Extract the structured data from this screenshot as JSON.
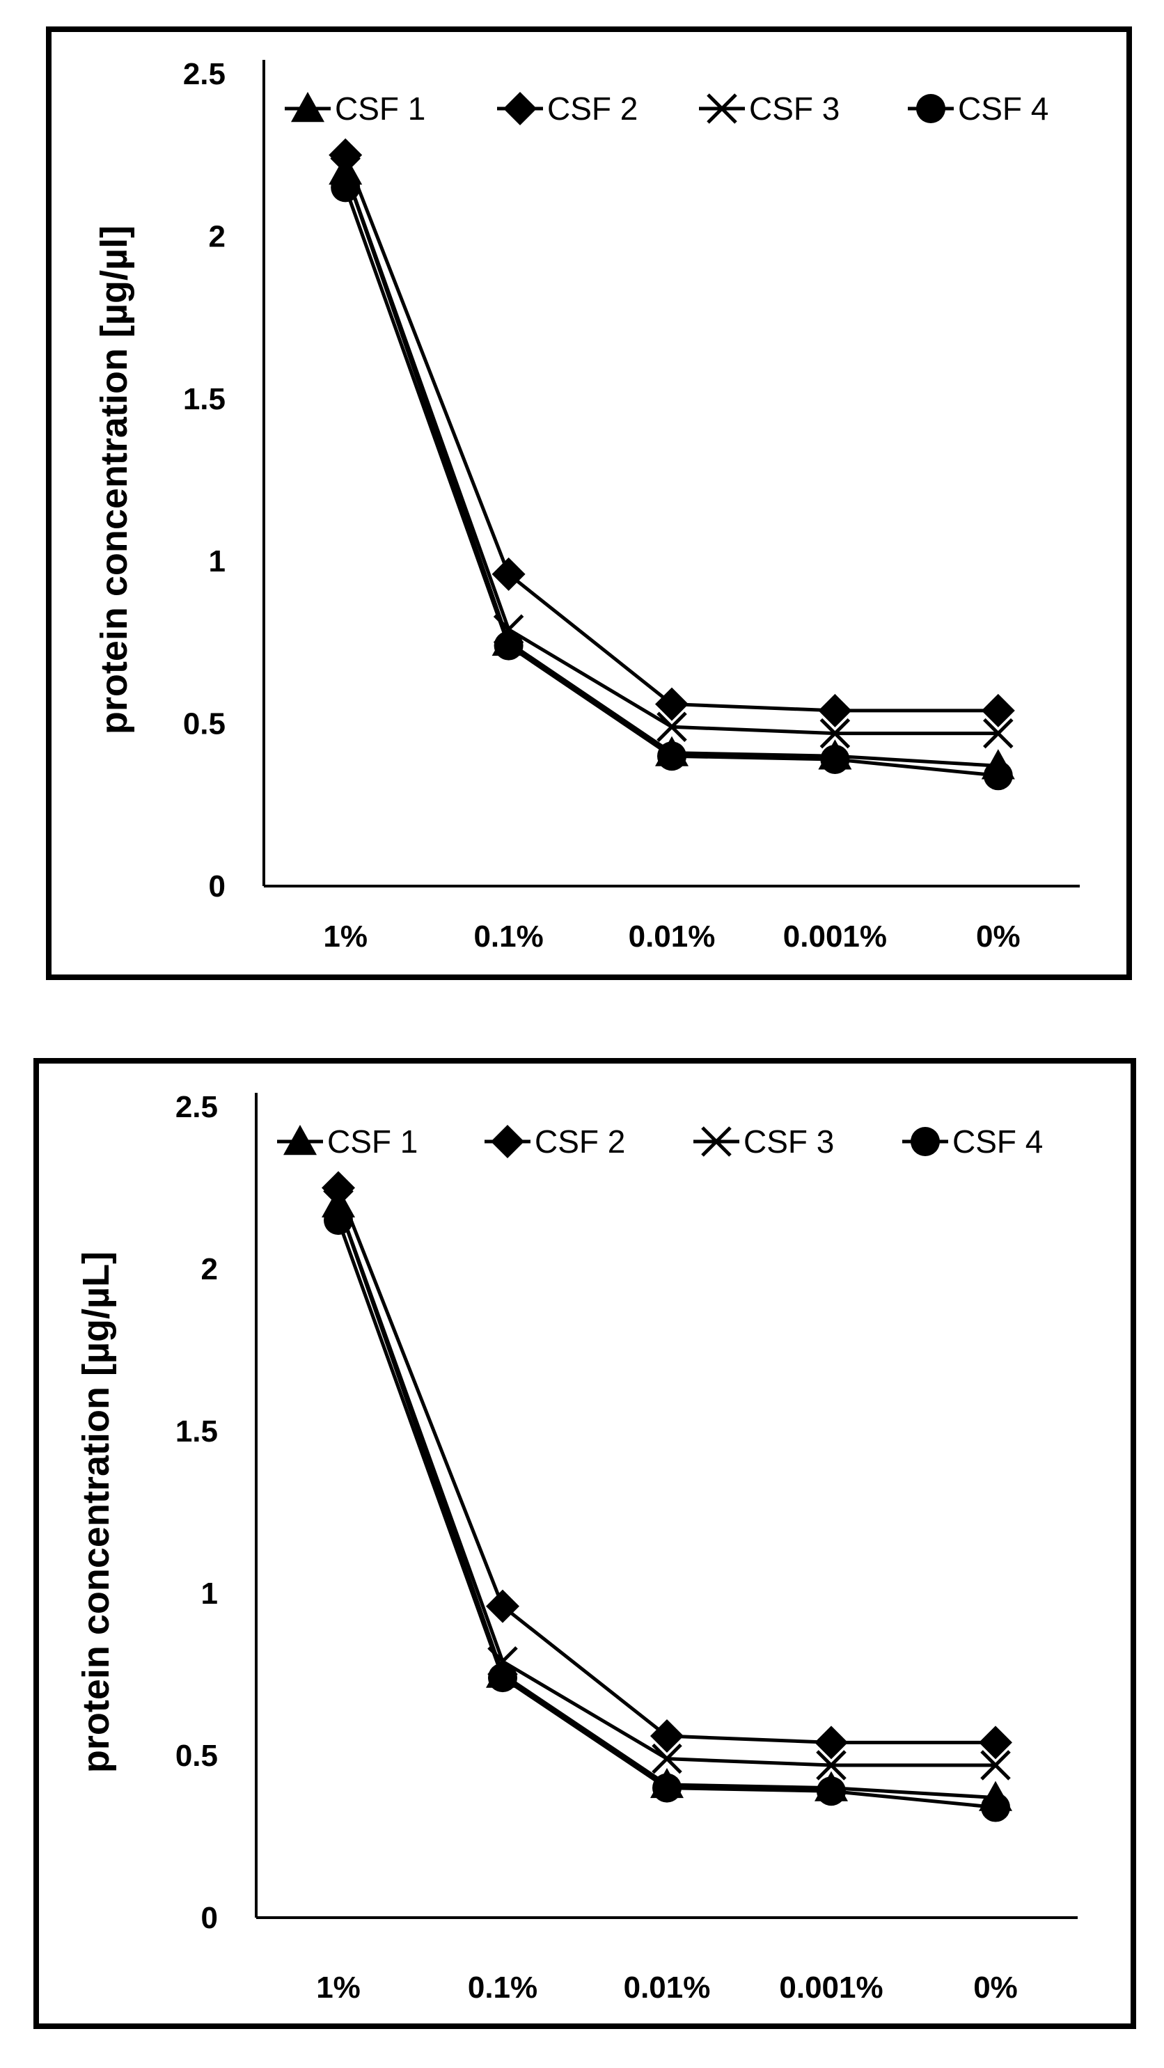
{
  "chart_data": [
    {
      "type": "line",
      "title": "",
      "xlabel": "",
      "ylabel": "protein concentration [µg/µl]",
      "categories": [
        "1%",
        "0.1%",
        "0.01%",
        "0.001%",
        "0%"
      ],
      "ylim": [
        0,
        2.5
      ],
      "yticks": [
        "0",
        "0.5",
        "1",
        "1.5",
        "2",
        "2.5"
      ],
      "grid": false,
      "legend_position": "top",
      "series": [
        {
          "name": "CSF 1",
          "marker": "triangle",
          "values": [
            2.2,
            0.75,
            0.41,
            0.4,
            0.37
          ]
        },
        {
          "name": "CSF 2",
          "marker": "diamond",
          "values": [
            2.25,
            0.96,
            0.56,
            0.54,
            0.54
          ]
        },
        {
          "name": "CSF 3",
          "marker": "x",
          "values": [
            2.2,
            0.79,
            0.49,
            0.47,
            0.47
          ]
        },
        {
          "name": "CSF 4",
          "marker": "circle",
          "values": [
            2.15,
            0.74,
            0.4,
            0.39,
            0.34
          ]
        }
      ]
    },
    {
      "type": "line",
      "title": "",
      "xlabel": "",
      "ylabel": "protein concentration [µg/µL]",
      "categories": [
        "1%",
        "0.1%",
        "0.01%",
        "0.001%",
        "0%"
      ],
      "ylim": [
        0,
        2.5
      ],
      "yticks": [
        "0",
        "0.5",
        "1",
        "1.5",
        "2",
        "2.5"
      ],
      "grid": false,
      "legend_position": "top",
      "series": [
        {
          "name": "CSF 1",
          "marker": "triangle",
          "values": [
            2.2,
            0.75,
            0.41,
            0.4,
            0.37
          ]
        },
        {
          "name": "CSF 2",
          "marker": "diamond",
          "values": [
            2.25,
            0.96,
            0.56,
            0.54,
            0.54
          ]
        },
        {
          "name": "CSF 3",
          "marker": "x",
          "values": [
            2.2,
            0.79,
            0.49,
            0.47,
            0.47
          ]
        },
        {
          "name": "CSF 4",
          "marker": "circle",
          "values": [
            2.15,
            0.74,
            0.4,
            0.39,
            0.34
          ]
        }
      ]
    }
  ]
}
